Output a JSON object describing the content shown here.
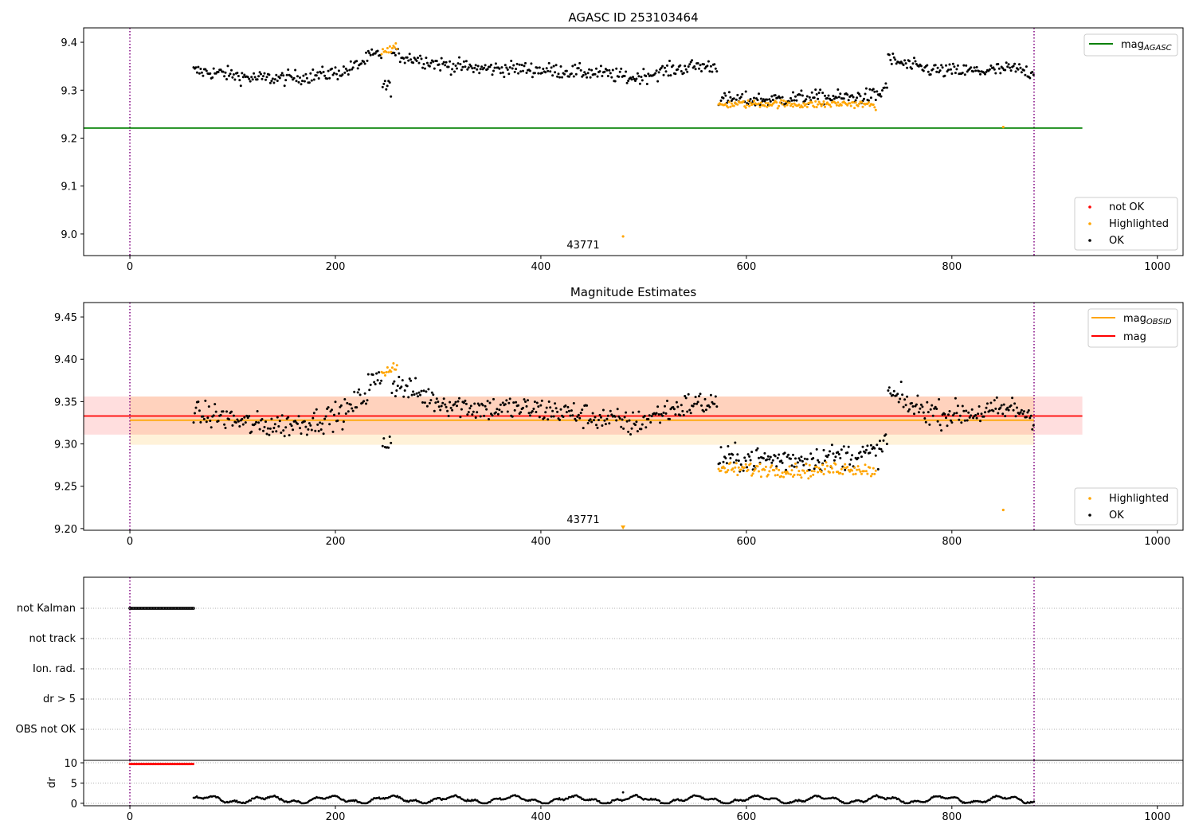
{
  "chart_data": [
    {
      "type": "scatter",
      "title": "AGASC ID 253103464",
      "xlim": [
        -45,
        1025
      ],
      "ylim": [
        8.955,
        9.43
      ],
      "x_ticks": [
        0,
        200,
        400,
        600,
        800,
        1000
      ],
      "y_ticks": [
        9.0,
        9.1,
        9.2,
        9.3,
        9.4
      ],
      "x_tick_labels": [
        "0",
        "200",
        "400",
        "600",
        "800",
        "1000"
      ],
      "y_tick_labels": [
        "9.0",
        "9.1",
        "9.2",
        "9.3",
        "9.4"
      ],
      "vlines": [
        0,
        880
      ],
      "lines": [
        {
          "name": "mag_AGASC",
          "y": 9.221,
          "x_range": [
            -45,
            927
          ],
          "color": "#008000"
        }
      ],
      "series": [
        {
          "name": "OK",
          "color": "#000000",
          "segments": [
            {
              "x_range": [
                62,
                232
              ],
              "points": [
                [
                  62,
                  9.34
                ],
                [
                  90,
                  9.335
                ],
                [
                  120,
                  9.325
                ],
                [
                  150,
                  9.325
                ],
                [
                  180,
                  9.33
                ],
                [
                  210,
                  9.34
                ],
                [
                  232,
                  9.365
                ]
              ]
            },
            {
              "x_range": [
                232,
                245
              ],
              "points": [
                [
                  232,
                  9.37
                ],
                [
                  245,
                  9.375
                ]
              ]
            },
            {
              "x_range": [
                246,
                255
              ],
              "points": [
                [
                  246,
                  9.31
                ],
                [
                  255,
                  9.305
                ]
              ]
            },
            {
              "x_range": [
                255,
                572
              ],
              "points": [
                [
                  255,
                  9.375
                ],
                [
                  280,
                  9.365
                ],
                [
                  300,
                  9.355
                ],
                [
                  340,
                  9.345
                ],
                [
                  380,
                  9.345
                ],
                [
                  420,
                  9.34
                ],
                [
                  460,
                  9.335
                ],
                [
                  490,
                  9.325
                ],
                [
                  520,
                  9.34
                ],
                [
                  550,
                  9.35
                ],
                [
                  572,
                  9.35
                ]
              ]
            },
            {
              "x_range": [
                573,
                730
              ],
              "points": [
                [
                  573,
                  9.28
                ],
                [
                  620,
                  9.28
                ],
                [
                  660,
                  9.285
                ],
                [
                  700,
                  9.285
                ],
                [
                  730,
                  9.29
                ]
              ]
            },
            {
              "x_range": [
                730,
                737
              ],
              "points": [
                [
                  730,
                  9.29
                ],
                [
                  737,
                  9.315
                ]
              ]
            },
            {
              "x_range": [
                738,
                880
              ],
              "points": [
                [
                  738,
                  9.365
                ],
                [
                  760,
                  9.35
                ],
                [
                  790,
                  9.34
                ],
                [
                  830,
                  9.34
                ],
                [
                  860,
                  9.345
                ],
                [
                  880,
                  9.335
                ]
              ]
            }
          ]
        },
        {
          "name": "Highlighted",
          "color": "#ffa500",
          "segments": [
            {
              "x_range": [
                245,
                260
              ],
              "points": [
                [
                  245,
                  9.383
                ],
                [
                  260,
                  9.388
                ]
              ]
            },
            {
              "x_range": [
                573,
                727
              ],
              "points": [
                [
                  573,
                  9.27
                ],
                [
                  620,
                  9.272
                ],
                [
                  660,
                  9.27
                ],
                [
                  700,
                  9.272
                ],
                [
                  727,
                  9.268
                ]
              ]
            }
          ],
          "extra_points": [
            [
              480,
              8.995
            ],
            [
              850,
              9.223
            ]
          ]
        },
        {
          "name": "not OK",
          "color": "#ff0000",
          "points": []
        }
      ],
      "annotations": [
        {
          "text": "43771",
          "x": 480,
          "y": 8.975
        }
      ],
      "legends": [
        {
          "placement": "top-right",
          "entries": [
            {
              "label": "mag",
              "sub": "AGASC",
              "kind": "line",
              "color": "#008000"
            }
          ]
        },
        {
          "placement": "bottom-right",
          "entries": [
            {
              "label": "not OK",
              "kind": "dot",
              "color": "#ff0000"
            },
            {
              "label": "Highlighted",
              "kind": "dot",
              "color": "#ffa500"
            },
            {
              "label": "OK",
              "kind": "dot",
              "color": "#000000"
            }
          ]
        }
      ]
    },
    {
      "type": "scatter",
      "title": "Magnitude Estimates",
      "xlim": [
        -45,
        1025
      ],
      "ylim": [
        9.198,
        9.467
      ],
      "x_ticks": [
        0,
        200,
        400,
        600,
        800,
        1000
      ],
      "y_ticks": [
        9.2,
        9.25,
        9.3,
        9.35,
        9.4,
        9.45
      ],
      "x_tick_labels": [
        "0",
        "200",
        "400",
        "600",
        "800",
        "1000"
      ],
      "y_tick_labels": [
        "9.20",
        "9.25",
        "9.30",
        "9.35",
        "9.40",
        "9.45"
      ],
      "vlines": [
        0,
        880
      ],
      "bands": [
        {
          "y_range": [
            9.299,
            9.356
          ],
          "x_range": [
            0,
            880
          ],
          "color": "#ffa500",
          "opacity": 0.15
        },
        {
          "y_range": [
            9.311,
            9.356
          ],
          "x_range": [
            -45,
            927
          ],
          "color": "#ff0000",
          "opacity": 0.13
        }
      ],
      "lines": [
        {
          "name": "mag_OBSID",
          "y": 9.328,
          "x_range": [
            0,
            880
          ],
          "color": "#ffa500"
        },
        {
          "name": "mag",
          "y": 9.333,
          "x_range": [
            -45,
            927
          ],
          "color": "#ff0000"
        }
      ],
      "series": [
        {
          "name": "OK",
          "color": "#000000",
          "segments": [
            {
              "x_range": [
                62,
                232
              ],
              "points": [
                [
                  62,
                  9.335
                ],
                [
                  90,
                  9.332
                ],
                [
                  120,
                  9.322
                ],
                [
                  150,
                  9.322
                ],
                [
                  180,
                  9.327
                ],
                [
                  210,
                  9.337
                ],
                [
                  232,
                  9.362
                ]
              ]
            },
            {
              "x_range": [
                232,
                245
              ],
              "points": [
                [
                  232,
                  9.372
                ],
                [
                  245,
                  9.375
                ]
              ]
            },
            {
              "x_range": [
                246,
                255
              ],
              "points": [
                [
                  246,
                  9.305
                ],
                [
                  255,
                  9.3
                ]
              ]
            },
            {
              "x_range": [
                255,
                572
              ],
              "points": [
                [
                  255,
                  9.372
                ],
                [
                  280,
                  9.36
                ],
                [
                  300,
                  9.35
                ],
                [
                  340,
                  9.342
                ],
                [
                  380,
                  9.342
                ],
                [
                  420,
                  9.338
                ],
                [
                  460,
                  9.33
                ],
                [
                  490,
                  9.323
                ],
                [
                  520,
                  9.338
                ],
                [
                  550,
                  9.348
                ],
                [
                  572,
                  9.348
                ]
              ]
            },
            {
              "x_range": [
                573,
                730
              ],
              "points": [
                [
                  573,
                  9.282
                ],
                [
                  620,
                  9.282
                ],
                [
                  660,
                  9.282
                ],
                [
                  700,
                  9.286
                ],
                [
                  730,
                  9.29
                ]
              ]
            },
            {
              "x_range": [
                730,
                737
              ],
              "points": [
                [
                  730,
                  9.29
                ],
                [
                  737,
                  9.31
                ]
              ]
            },
            {
              "x_range": [
                738,
                880
              ],
              "points": [
                [
                  738,
                  9.36
                ],
                [
                  760,
                  9.345
                ],
                [
                  790,
                  9.335
                ],
                [
                  830,
                  9.337
                ],
                [
                  860,
                  9.342
                ],
                [
                  880,
                  9.333
                ]
              ]
            }
          ]
        },
        {
          "name": "Highlighted",
          "color": "#ffa500",
          "segments": [
            {
              "x_range": [
                245,
                260
              ],
              "points": [
                [
                  245,
                  9.385
                ],
                [
                  260,
                  9.389
                ]
              ]
            },
            {
              "x_range": [
                573,
                727
              ],
              "points": [
                [
                  573,
                  9.27
                ],
                [
                  620,
                  9.27
                ],
                [
                  660,
                  9.268
                ],
                [
                  700,
                  9.272
                ],
                [
                  727,
                  9.268
                ]
              ]
            }
          ],
          "extra_points": [
            [
              850,
              9.222
            ]
          ]
        }
      ],
      "annotations": [
        {
          "text": "43771",
          "x": 480,
          "y": 9.208
        }
      ],
      "legends": [
        {
          "placement": "top-right",
          "entries": [
            {
              "label": "mag",
              "sub": "OBSID",
              "kind": "line",
              "color": "#ffa500"
            },
            {
              "label": "mag",
              "sub": "",
              "kind": "line",
              "color": "#ff0000"
            }
          ]
        },
        {
          "placement": "bottom-right",
          "entries": [
            {
              "label": "Highlighted",
              "kind": "dot",
              "color": "#ffa500"
            },
            {
              "label": "OK",
              "kind": "dot",
              "color": "#000000"
            }
          ]
        }
      ]
    },
    {
      "type": "scatter",
      "title": "",
      "xlim": [
        -45,
        1025
      ],
      "categories": [
        "not Kalman",
        "not track",
        "Ion. rad.",
        "dr > 5",
        "OBS not OK"
      ],
      "grid": true,
      "series": [
        {
          "name": "not Kalman",
          "color": "#000000",
          "x_range": [
            0,
            62
          ],
          "count": 60
        }
      ]
    },
    {
      "type": "scatter",
      "title": "",
      "xlim": [
        -45,
        1025
      ],
      "ylim": [
        -0.6,
        10.6
      ],
      "y_ticks": [
        0,
        5,
        10
      ],
      "y_tick_labels": [
        "0",
        "5",
        "10"
      ],
      "x_ticks": [
        0,
        200,
        400,
        600,
        800,
        1000
      ],
      "x_tick_labels": [
        "0",
        "200",
        "400",
        "600",
        "800",
        "1000"
      ],
      "ylabel": "dr",
      "grid": true,
      "vlines": [
        0,
        880
      ],
      "series": [
        {
          "name": "dr_clipped",
          "color": "#ff0000",
          "x_range": [
            0,
            62
          ],
          "y": 9.7
        },
        {
          "name": "dr",
          "color": "#000000",
          "x_range": [
            62,
            880
          ],
          "y_range": [
            0,
            2.3
          ],
          "extra_points": [
            [
              480,
              2.7
            ]
          ]
        }
      ]
    }
  ]
}
